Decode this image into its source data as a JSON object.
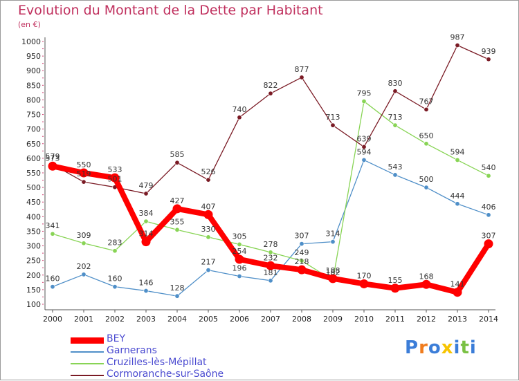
{
  "title": "Evolution du Montant de la Dette par Habitant",
  "subtitle": "(en €)",
  "logo_text": "Proxiti",
  "chart_data": {
    "type": "line",
    "title": "Evolution du Montant de la Dette par Habitant",
    "ylabel": "(en €)",
    "x": [
      "2000",
      "2001",
      "2002",
      "2003",
      "2004",
      "2005",
      "2006",
      "2007",
      "2008",
      "2009",
      "2010",
      "2011",
      "2012",
      "2013",
      "2014"
    ],
    "ylim": [
      100,
      1000
    ],
    "yticks": [
      100,
      150,
      200,
      250,
      300,
      350,
      400,
      450,
      500,
      550,
      600,
      650,
      700,
      750,
      800,
      850,
      900,
      950,
      1000
    ],
    "grid": false,
    "legend_position": "bottom-left",
    "series": [
      {
        "name": "BEY",
        "color": "#ff0000",
        "values": [
          573,
          550,
          533,
          314,
          427,
          407,
          254,
          232,
          218,
          188,
          170,
          155,
          168,
          141,
          307
        ]
      },
      {
        "name": "Garnerans",
        "color": "#4f8fc8",
        "values": [
          160,
          202,
          160,
          146,
          128,
          217,
          196,
          181,
          307,
          314,
          594,
          543,
          500,
          444,
          406
        ]
      },
      {
        "name": "Cruzilles-lès-Mépillat",
        "color": "#88d455",
        "values": [
          341,
          309,
          283,
          384,
          355,
          330,
          305,
          278,
          249,
          182,
          795,
          713,
          650,
          594,
          540
        ]
      },
      {
        "name": "Cormoranche-sur-Saône",
        "color": "#7a1a24",
        "values": [
          579,
          519,
          501,
          479,
          585,
          526,
          740,
          822,
          877,
          713,
          639,
          830,
          767,
          987,
          939
        ]
      }
    ]
  }
}
